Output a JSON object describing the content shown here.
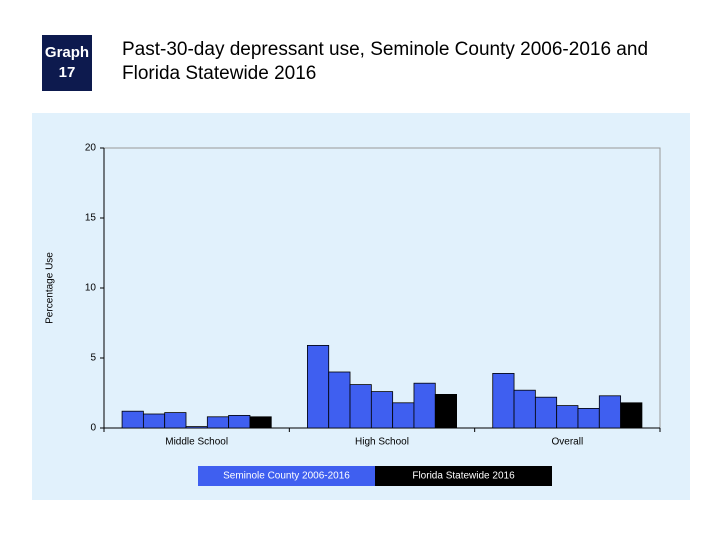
{
  "badge": "Graph 17",
  "chart_data": {
    "type": "bar",
    "title": "Past-30-day depressant use, Seminole County 2006-2016 and Florida Statewide 2016",
    "y_label": "Percentage Use",
    "categories": [
      "Middle School",
      "High School",
      "Overall"
    ],
    "series": [
      {
        "name": "Seminole County 2006-2016",
        "color": "#3f5ff0",
        "values": [
          [
            1.2,
            1.0,
            1.1,
            0.1,
            0.8,
            0.9
          ],
          [
            5.9,
            4.0,
            3.1,
            2.6,
            1.8,
            3.2
          ],
          [
            3.9,
            2.7,
            2.2,
            1.6,
            1.4,
            2.3
          ]
        ]
      },
      {
        "name": "Florida Statewide 2016",
        "color": "#000000",
        "values": [
          0.8,
          2.4,
          1.8
        ]
      }
    ],
    "ylim": [
      0,
      20
    ],
    "yticks": [
      0,
      5,
      10,
      15,
      20
    ],
    "grid": false
  }
}
